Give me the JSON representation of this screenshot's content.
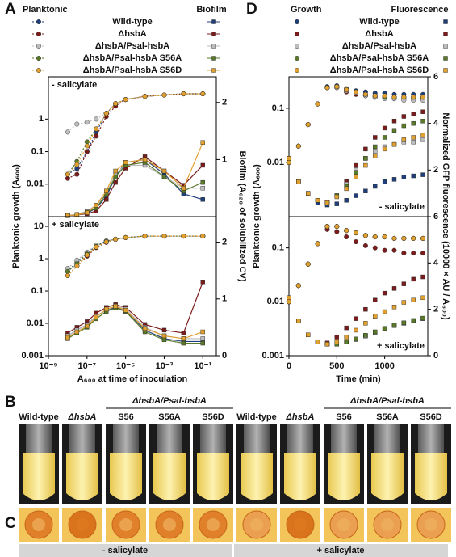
{
  "panel_labels": [
    "A",
    "B",
    "C",
    "D"
  ],
  "chart_data": [
    {
      "type": "line",
      "xscale": "log",
      "yscale": "log",
      "annotation": "- salicylate",
      "legend_titles": [
        "Planktonic",
        "Biofilm"
      ],
      "ylabel": "Planktonic growth (A₆₀₀)",
      "y2label": "Biofilm (A₆₂₀ of solubilized CV)",
      "y_marker": "circle",
      "y2_marker": "square",
      "y_line": "dashed",
      "y2_line": "solid",
      "xlim": [
        1e-09,
        0.5
      ],
      "ylim": [
        0.001,
        20
      ],
      "yticks": [
        0.01,
        0.1,
        1
      ],
      "y2lim": [
        0,
        2.45
      ],
      "y2ticks": [
        1,
        2
      ],
      "x": [
        1e-08,
        3e-08,
        1e-07,
        3e-07,
        1e-06,
        3e-06,
        1e-05,
        0.0001,
        0.001,
        0.01,
        0.1
      ],
      "series": [
        {
          "name": "Wild-type",
          "color": "#1f3f7a",
          "values": [
            0.02,
            0.03,
            0.1,
            0.4,
            1.5,
            3,
            4,
            5,
            5.5,
            6,
            6
          ],
          "values_y2": [
            0.02,
            0.03,
            0.06,
            0.15,
            0.35,
            0.7,
            0.95,
            1.0,
            0.75,
            0.4,
            0.3
          ]
        },
        {
          "name": "ΔhsbA",
          "color": "#7a1c1c",
          "values": [
            0.015,
            0.02,
            0.1,
            0.3,
            1.2,
            2.5,
            4,
            5,
            5.5,
            6,
            6
          ],
          "values_y2": [
            0.02,
            0.03,
            0.05,
            0.1,
            0.3,
            0.6,
            0.85,
            1.05,
            0.8,
            0.55,
            0.9
          ]
        },
        {
          "name": "ΔhsbA/Psal-hsbA",
          "color": "#bdbdbd",
          "values": [
            0.4,
            0.7,
            0.8,
            1,
            1.5,
            3,
            4,
            5,
            5.5,
            6,
            6
          ],
          "values_y2": [
            0.02,
            0.04,
            0.1,
            0.2,
            0.4,
            0.75,
            0.9,
            0.9,
            0.7,
            0.5,
            0.5
          ]
        },
        {
          "name": "ΔhsbA/Psal-hsbA S56A",
          "color": "#5a7a2a",
          "values": [
            0.02,
            0.05,
            0.2,
            0.5,
            1.5,
            3,
            4,
            5,
            5.5,
            6,
            6
          ],
          "values_y2": [
            0.02,
            0.03,
            0.08,
            0.15,
            0.4,
            0.7,
            0.9,
            0.95,
            0.7,
            0.45,
            0.6
          ]
        },
        {
          "name": "ΔhsbA/Psal-hsbA S56D",
          "color": "#e0a030",
          "values": [
            0.02,
            0.04,
            0.15,
            0.5,
            1.5,
            3,
            4,
            5,
            5.5,
            6,
            6
          ],
          "values_y2": [
            0.02,
            0.03,
            0.07,
            0.2,
            0.45,
            0.8,
            0.95,
            1.0,
            0.8,
            0.5,
            1.3
          ]
        }
      ]
    },
    {
      "type": "line",
      "xscale": "log",
      "yscale": "log",
      "annotation": "+ salicylate",
      "xlabel": "A₆₀₀ at time of inoculation",
      "y_marker": "circle",
      "y2_marker": "square",
      "y_line": "dashed",
      "y2_line": "solid",
      "xlim": [
        1e-09,
        0.5
      ],
      "xticks": [
        {
          "value": 1e-09,
          "label": "10⁻⁹"
        },
        {
          "value": 1e-07,
          "label": "10⁻⁷"
        },
        {
          "value": 1e-05,
          "label": "10⁻⁵"
        },
        {
          "value": 0.001,
          "label": "10⁻³"
        },
        {
          "value": 0.1,
          "label": "10⁻¹"
        }
      ],
      "ylim": [
        0.001,
        20
      ],
      "yticks": [
        0.001,
        0.01,
        0.1,
        1,
        10
      ],
      "y2lim": [
        0,
        2.45
      ],
      "y2ticks": [
        0,
        1,
        2
      ],
      "x": [
        1e-08,
        3e-08,
        1e-07,
        3e-07,
        1e-06,
        3e-06,
        1e-05,
        0.0001,
        0.001,
        0.01,
        0.1
      ],
      "series": [
        {
          "color": "#1f3f7a",
          "values": [
            0.4,
            0.8,
            1.5,
            2.5,
            3.5,
            4,
            4.5,
            5,
            5,
            5,
            5
          ],
          "values_y2": [
            0.35,
            0.45,
            0.55,
            0.7,
            0.8,
            0.85,
            0.8,
            0.45,
            0.3,
            0.25,
            0.25
          ]
        },
        {
          "color": "#7a1c1c",
          "values": [
            0.3,
            0.6,
            1.2,
            2.2,
            3.2,
            4,
            4.5,
            5,
            5,
            5,
            5
          ],
          "values_y2": [
            0.4,
            0.5,
            0.6,
            0.75,
            0.85,
            0.9,
            0.85,
            0.55,
            0.45,
            0.4,
            1.3
          ]
        },
        {
          "color": "#bdbdbd",
          "values": [
            0.5,
            0.9,
            1.6,
            2.6,
            3.6,
            4,
            4.5,
            5,
            5,
            5,
            5
          ],
          "values_y2": [
            0.35,
            0.45,
            0.55,
            0.7,
            0.8,
            0.88,
            0.82,
            0.5,
            0.35,
            0.3,
            0.3
          ]
        },
        {
          "color": "#5a7a2a",
          "values": [
            0.4,
            0.7,
            1.4,
            2.4,
            3.4,
            4,
            4.5,
            5,
            5,
            5,
            5
          ],
          "values_y2": [
            0.3,
            0.4,
            0.5,
            0.65,
            0.78,
            0.84,
            0.78,
            0.42,
            0.28,
            0.22,
            0.22
          ]
        },
        {
          "color": "#e0a030",
          "values": [
            0.3,
            0.6,
            1.3,
            2.3,
            3.3,
            4,
            4.5,
            5,
            5,
            5,
            5
          ],
          "values_y2": [
            0.32,
            0.42,
            0.52,
            0.68,
            0.82,
            0.87,
            0.8,
            0.48,
            0.35,
            0.3,
            0.42
          ]
        }
      ]
    },
    {
      "type": "scatter",
      "xscale": "linear",
      "yscale": "log",
      "annotation": "- salicylate",
      "legend_titles": [
        "Growth",
        "Fluorescence"
      ],
      "ylabel": "Planktonic growth (A₆₀₀)",
      "y2label": "Normalized GFP fluorescence (10000 × AU / A₆₀₀)",
      "y_marker": "circle",
      "y2_marker": "square",
      "y_line": "none",
      "y2_line": "none",
      "xlim": [
        0,
        1450
      ],
      "ylim": [
        0.001,
        0.38
      ],
      "yticks": [
        0.01,
        0.1
      ],
      "y2lim": [
        0,
        6
      ],
      "y2ticks": [
        2,
        4,
        6
      ],
      "x": [
        0,
        100,
        200,
        300,
        400,
        500,
        600,
        700,
        800,
        900,
        1000,
        1100,
        1200,
        1300,
        1400
      ],
      "series": [
        {
          "name": "Wild-type",
          "color": "#1f3f7a",
          "values": [
            0.01,
            0.02,
            0.05,
            0.12,
            0.25,
            0.26,
            0.23,
            0.21,
            0.2,
            0.19,
            0.19,
            0.18,
            0.18,
            0.18,
            0.18
          ],
          "values_y2": [
            2.5,
            1.5,
            1.0,
            0.6,
            0.5,
            0.55,
            0.7,
            0.9,
            1.1,
            1.3,
            1.5,
            1.6,
            1.7,
            1.75,
            1.8
          ]
        },
        {
          "name": "ΔhsbA",
          "color": "#7a1c1c",
          "values": [
            0.01,
            0.02,
            0.05,
            0.12,
            0.24,
            0.24,
            0.2,
            0.18,
            0.17,
            0.16,
            0.16,
            0.15,
            0.15,
            0.15,
            0.15
          ],
          "values_y2": [
            2.5,
            1.5,
            1.0,
            0.7,
            0.6,
            0.9,
            1.5,
            2.2,
            2.9,
            3.4,
            3.8,
            4.1,
            4.3,
            4.4,
            4.5
          ]
        },
        {
          "name": "ΔhsbA/Psal-hsbA",
          "color": "#bdbdbd",
          "values": [
            0.01,
            0.02,
            0.05,
            0.12,
            0.24,
            0.24,
            0.21,
            0.19,
            0.17,
            0.16,
            0.15,
            0.15,
            0.14,
            0.14,
            0.14
          ],
          "values_y2": [
            2.5,
            1.5,
            1.0,
            0.7,
            0.6,
            0.9,
            1.4,
            2.0,
            2.5,
            2.8,
            3.0,
            3.1,
            3.2,
            3.2,
            3.3
          ]
        },
        {
          "name": "ΔhsbA/Psal-hsbA S56A",
          "color": "#5a7a2a",
          "values": [
            0.01,
            0.02,
            0.05,
            0.12,
            0.24,
            0.25,
            0.22,
            0.2,
            0.18,
            0.17,
            0.16,
            0.16,
            0.16,
            0.16,
            0.16
          ],
          "values_y2": [
            2.5,
            1.5,
            1.0,
            0.7,
            0.6,
            0.9,
            1.3,
            1.9,
            2.5,
            3.0,
            3.4,
            3.7,
            3.9,
            4.0,
            4.1
          ]
        },
        {
          "name": "ΔhsbA/Psal-hsbA S56D",
          "color": "#e0a030",
          "values": [
            0.01,
            0.02,
            0.05,
            0.12,
            0.24,
            0.25,
            0.22,
            0.2,
            0.18,
            0.17,
            0.17,
            0.16,
            0.16,
            0.16,
            0.16
          ],
          "values_y2": [
            2.5,
            1.5,
            1.0,
            0.7,
            0.6,
            0.85,
            1.2,
            1.7,
            2.2,
            2.6,
            2.9,
            3.1,
            3.3,
            3.4,
            3.5
          ]
        }
      ]
    },
    {
      "type": "scatter",
      "xscale": "linear",
      "yscale": "log",
      "annotation": "+ salicylate",
      "xlabel": "Time (min)",
      "y_marker": "circle",
      "y2_marker": "square",
      "y_line": "none",
      "y2_line": "none",
      "xlim": [
        0,
        1450
      ],
      "xticks": [
        0,
        500,
        1000
      ],
      "ylim": [
        0.001,
        0.38
      ],
      "yticks": [
        0.001,
        0.01,
        0.1
      ],
      "y2lim": [
        0,
        6
      ],
      "y2ticks": [
        0,
        2,
        4,
        6
      ],
      "x": [
        0,
        100,
        200,
        300,
        400,
        500,
        600,
        700,
        800,
        900,
        1000,
        1100,
        1200,
        1300,
        1400
      ],
      "series": [
        {
          "color": "#1f3f7a",
          "values": [
            0.01,
            0.02,
            0.05,
            0.12,
            0.25,
            0.25,
            0.21,
            0.19,
            0.17,
            0.16,
            0.16,
            0.15,
            0.15,
            0.15,
            0.15
          ],
          "values_y2": [
            2.5,
            1.5,
            0.9,
            0.6,
            0.5,
            0.5,
            0.6,
            0.7,
            0.85,
            1.0,
            1.15,
            1.3,
            1.4,
            1.5,
            1.6
          ]
        },
        {
          "color": "#7a1c1c",
          "values": [
            0.01,
            0.02,
            0.05,
            0.12,
            0.22,
            0.2,
            0.16,
            0.13,
            0.11,
            0.1,
            0.09,
            0.09,
            0.08,
            0.08,
            0.08
          ],
          "values_y2": [
            2.5,
            1.5,
            0.9,
            0.6,
            0.55,
            0.8,
            1.2,
            1.6,
            2.0,
            2.4,
            2.7,
            2.9,
            3.1,
            3.3,
            3.4
          ]
        },
        {
          "color": "#bdbdbd",
          "values": [
            0.01,
            0.02,
            0.05,
            0.12,
            0.25,
            0.25,
            0.21,
            0.19,
            0.17,
            0.16,
            0.16,
            0.15,
            0.15,
            0.15,
            0.15
          ],
          "values_y2": [
            2.5,
            1.5,
            0.9,
            0.6,
            0.5,
            0.5,
            0.6,
            0.7,
            0.85,
            1.0,
            1.15,
            1.3,
            1.4,
            1.5,
            1.6
          ]
        },
        {
          "color": "#5a7a2a",
          "values": [
            0.01,
            0.02,
            0.05,
            0.12,
            0.25,
            0.25,
            0.21,
            0.19,
            0.17,
            0.16,
            0.16,
            0.15,
            0.15,
            0.15,
            0.15
          ],
          "values_y2": [
            2.5,
            1.5,
            0.9,
            0.6,
            0.5,
            0.5,
            0.6,
            0.72,
            0.88,
            1.03,
            1.18,
            1.32,
            1.42,
            1.52,
            1.62
          ]
        },
        {
          "color": "#e0a030",
          "values": [
            0.01,
            0.02,
            0.05,
            0.12,
            0.25,
            0.25,
            0.21,
            0.19,
            0.17,
            0.16,
            0.16,
            0.15,
            0.15,
            0.15,
            0.15
          ],
          "values_y2": [
            2.5,
            1.5,
            0.9,
            0.6,
            0.5,
            0.6,
            0.8,
            1.1,
            1.4,
            1.7,
            1.9,
            2.1,
            2.3,
            2.4,
            2.5
          ]
        }
      ]
    }
  ],
  "photos": {
    "group_labels": [
      "ΔhsbA/Psal-hsbA",
      "ΔhsbA/Psal-hsbA"
    ],
    "tubes": [
      "Wild-type",
      "ΔhsbA",
      "S56",
      "S56A",
      "S56D",
      "Wild-type",
      "ΔhsbA",
      "S56",
      "S56A",
      "S56D"
    ],
    "conditions": [
      "- salicylate",
      "+ salicylate"
    ]
  }
}
